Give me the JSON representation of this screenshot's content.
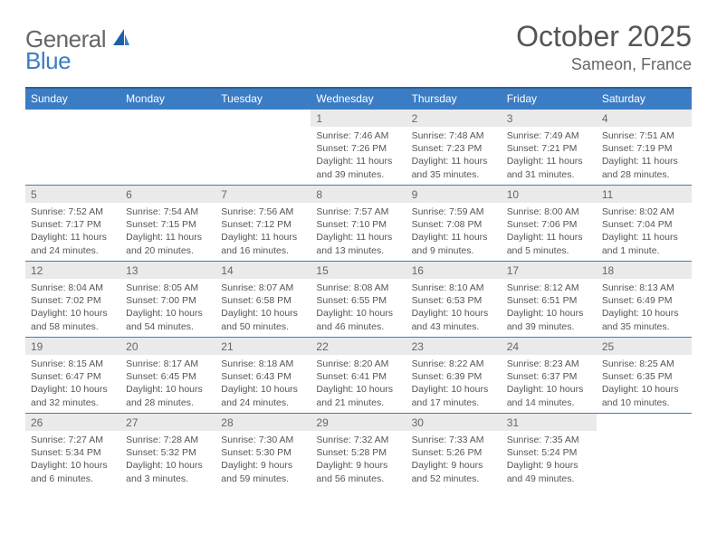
{
  "brand": {
    "general": "General",
    "blue": "Blue"
  },
  "title": {
    "month": "October 2025",
    "location": "Sameon, France"
  },
  "colors": {
    "header_bg": "#3b7dc4",
    "header_border": "#2a5e9a",
    "cell_border": "#3b7dc4",
    "daynum_bg": "#eaeaea",
    "text": "#555555"
  },
  "weekdays": [
    "Sunday",
    "Monday",
    "Tuesday",
    "Wednesday",
    "Thursday",
    "Friday",
    "Saturday"
  ],
  "weeks": [
    [
      null,
      null,
      null,
      {
        "n": "1",
        "sr": "Sunrise: 7:46 AM",
        "ss": "Sunset: 7:26 PM",
        "dl1": "Daylight: 11 hours",
        "dl2": "and 39 minutes."
      },
      {
        "n": "2",
        "sr": "Sunrise: 7:48 AM",
        "ss": "Sunset: 7:23 PM",
        "dl1": "Daylight: 11 hours",
        "dl2": "and 35 minutes."
      },
      {
        "n": "3",
        "sr": "Sunrise: 7:49 AM",
        "ss": "Sunset: 7:21 PM",
        "dl1": "Daylight: 11 hours",
        "dl2": "and 31 minutes."
      },
      {
        "n": "4",
        "sr": "Sunrise: 7:51 AM",
        "ss": "Sunset: 7:19 PM",
        "dl1": "Daylight: 11 hours",
        "dl2": "and 28 minutes."
      }
    ],
    [
      {
        "n": "5",
        "sr": "Sunrise: 7:52 AM",
        "ss": "Sunset: 7:17 PM",
        "dl1": "Daylight: 11 hours",
        "dl2": "and 24 minutes."
      },
      {
        "n": "6",
        "sr": "Sunrise: 7:54 AM",
        "ss": "Sunset: 7:15 PM",
        "dl1": "Daylight: 11 hours",
        "dl2": "and 20 minutes."
      },
      {
        "n": "7",
        "sr": "Sunrise: 7:56 AM",
        "ss": "Sunset: 7:12 PM",
        "dl1": "Daylight: 11 hours",
        "dl2": "and 16 minutes."
      },
      {
        "n": "8",
        "sr": "Sunrise: 7:57 AM",
        "ss": "Sunset: 7:10 PM",
        "dl1": "Daylight: 11 hours",
        "dl2": "and 13 minutes."
      },
      {
        "n": "9",
        "sr": "Sunrise: 7:59 AM",
        "ss": "Sunset: 7:08 PM",
        "dl1": "Daylight: 11 hours",
        "dl2": "and 9 minutes."
      },
      {
        "n": "10",
        "sr": "Sunrise: 8:00 AM",
        "ss": "Sunset: 7:06 PM",
        "dl1": "Daylight: 11 hours",
        "dl2": "and 5 minutes."
      },
      {
        "n": "11",
        "sr": "Sunrise: 8:02 AM",
        "ss": "Sunset: 7:04 PM",
        "dl1": "Daylight: 11 hours",
        "dl2": "and 1 minute."
      }
    ],
    [
      {
        "n": "12",
        "sr": "Sunrise: 8:04 AM",
        "ss": "Sunset: 7:02 PM",
        "dl1": "Daylight: 10 hours",
        "dl2": "and 58 minutes."
      },
      {
        "n": "13",
        "sr": "Sunrise: 8:05 AM",
        "ss": "Sunset: 7:00 PM",
        "dl1": "Daylight: 10 hours",
        "dl2": "and 54 minutes."
      },
      {
        "n": "14",
        "sr": "Sunrise: 8:07 AM",
        "ss": "Sunset: 6:58 PM",
        "dl1": "Daylight: 10 hours",
        "dl2": "and 50 minutes."
      },
      {
        "n": "15",
        "sr": "Sunrise: 8:08 AM",
        "ss": "Sunset: 6:55 PM",
        "dl1": "Daylight: 10 hours",
        "dl2": "and 46 minutes."
      },
      {
        "n": "16",
        "sr": "Sunrise: 8:10 AM",
        "ss": "Sunset: 6:53 PM",
        "dl1": "Daylight: 10 hours",
        "dl2": "and 43 minutes."
      },
      {
        "n": "17",
        "sr": "Sunrise: 8:12 AM",
        "ss": "Sunset: 6:51 PM",
        "dl1": "Daylight: 10 hours",
        "dl2": "and 39 minutes."
      },
      {
        "n": "18",
        "sr": "Sunrise: 8:13 AM",
        "ss": "Sunset: 6:49 PM",
        "dl1": "Daylight: 10 hours",
        "dl2": "and 35 minutes."
      }
    ],
    [
      {
        "n": "19",
        "sr": "Sunrise: 8:15 AM",
        "ss": "Sunset: 6:47 PM",
        "dl1": "Daylight: 10 hours",
        "dl2": "and 32 minutes."
      },
      {
        "n": "20",
        "sr": "Sunrise: 8:17 AM",
        "ss": "Sunset: 6:45 PM",
        "dl1": "Daylight: 10 hours",
        "dl2": "and 28 minutes."
      },
      {
        "n": "21",
        "sr": "Sunrise: 8:18 AM",
        "ss": "Sunset: 6:43 PM",
        "dl1": "Daylight: 10 hours",
        "dl2": "and 24 minutes."
      },
      {
        "n": "22",
        "sr": "Sunrise: 8:20 AM",
        "ss": "Sunset: 6:41 PM",
        "dl1": "Daylight: 10 hours",
        "dl2": "and 21 minutes."
      },
      {
        "n": "23",
        "sr": "Sunrise: 8:22 AM",
        "ss": "Sunset: 6:39 PM",
        "dl1": "Daylight: 10 hours",
        "dl2": "and 17 minutes."
      },
      {
        "n": "24",
        "sr": "Sunrise: 8:23 AM",
        "ss": "Sunset: 6:37 PM",
        "dl1": "Daylight: 10 hours",
        "dl2": "and 14 minutes."
      },
      {
        "n": "25",
        "sr": "Sunrise: 8:25 AM",
        "ss": "Sunset: 6:35 PM",
        "dl1": "Daylight: 10 hours",
        "dl2": "and 10 minutes."
      }
    ],
    [
      {
        "n": "26",
        "sr": "Sunrise: 7:27 AM",
        "ss": "Sunset: 5:34 PM",
        "dl1": "Daylight: 10 hours",
        "dl2": "and 6 minutes."
      },
      {
        "n": "27",
        "sr": "Sunrise: 7:28 AM",
        "ss": "Sunset: 5:32 PM",
        "dl1": "Daylight: 10 hours",
        "dl2": "and 3 minutes."
      },
      {
        "n": "28",
        "sr": "Sunrise: 7:30 AM",
        "ss": "Sunset: 5:30 PM",
        "dl1": "Daylight: 9 hours",
        "dl2": "and 59 minutes."
      },
      {
        "n": "29",
        "sr": "Sunrise: 7:32 AM",
        "ss": "Sunset: 5:28 PM",
        "dl1": "Daylight: 9 hours",
        "dl2": "and 56 minutes."
      },
      {
        "n": "30",
        "sr": "Sunrise: 7:33 AM",
        "ss": "Sunset: 5:26 PM",
        "dl1": "Daylight: 9 hours",
        "dl2": "and 52 minutes."
      },
      {
        "n": "31",
        "sr": "Sunrise: 7:35 AM",
        "ss": "Sunset: 5:24 PM",
        "dl1": "Daylight: 9 hours",
        "dl2": "and 49 minutes."
      },
      null
    ]
  ]
}
